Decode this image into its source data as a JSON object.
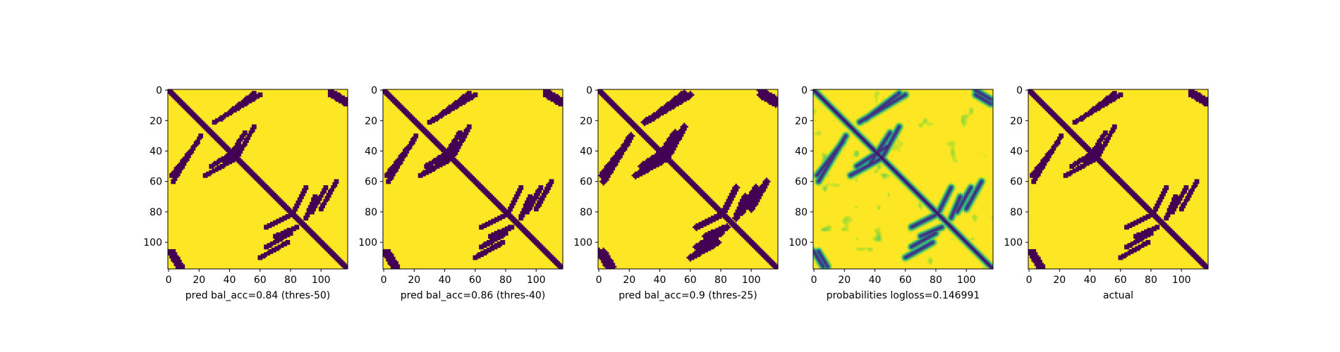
{
  "chart_data": [
    {
      "type": "heatmap",
      "xlabel": "pred bal_acc=0.84 (thres-50)",
      "x_ticks": [
        0,
        20,
        40,
        60,
        80,
        100
      ],
      "y_ticks": [
        0,
        20,
        40,
        60,
        80,
        100
      ],
      "xlim": [
        0,
        118
      ],
      "ylim": [
        118,
        0
      ],
      "grid_size": 118,
      "color_scale": "viridis",
      "binary": true,
      "threshold": 50
    },
    {
      "type": "heatmap",
      "xlabel": "pred bal_acc=0.86 (thres-40)",
      "x_ticks": [
        0,
        20,
        40,
        60,
        80,
        100
      ],
      "y_ticks": [
        0,
        20,
        40,
        60,
        80,
        100
      ],
      "xlim": [
        0,
        118
      ],
      "ylim": [
        118,
        0
      ],
      "grid_size": 118,
      "color_scale": "viridis",
      "binary": true,
      "threshold": 40
    },
    {
      "type": "heatmap",
      "xlabel": "pred bal_acc=0.9 (thres-25)",
      "x_ticks": [
        0,
        20,
        40,
        60,
        80,
        100
      ],
      "y_ticks": [
        0,
        20,
        40,
        60,
        80,
        100
      ],
      "xlim": [
        0,
        118
      ],
      "ylim": [
        118,
        0
      ],
      "grid_size": 118,
      "color_scale": "viridis",
      "binary": true,
      "threshold": 25
    },
    {
      "type": "heatmap",
      "xlabel": "probabilities logloss=0.146991",
      "x_ticks": [
        0,
        20,
        40,
        60,
        80,
        100
      ],
      "y_ticks": [
        0,
        20,
        40,
        60,
        80,
        100
      ],
      "xlim": [
        0,
        118
      ],
      "ylim": [
        118,
        0
      ],
      "grid_size": 118,
      "color_scale": "viridis",
      "binary": false
    },
    {
      "type": "heatmap",
      "xlabel": "actual",
      "x_ticks": [
        0,
        20,
        40,
        60,
        80,
        100
      ],
      "y_ticks": [
        0,
        20,
        40,
        60,
        80,
        100
      ],
      "xlim": [
        0,
        118
      ],
      "ylim": [
        118,
        0
      ],
      "grid_size": 118,
      "color_scale": "viridis",
      "binary": true
    }
  ],
  "colors": {
    "low": "#440154",
    "high": "#fde725"
  }
}
